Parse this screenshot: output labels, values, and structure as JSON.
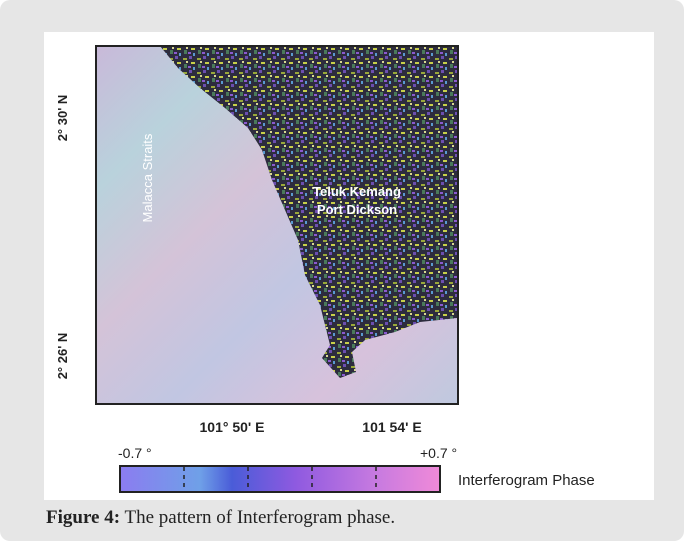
{
  "figure": {
    "lat_labels": [
      "2° 30' N",
      "2° 26' N"
    ],
    "lon_labels": [
      "101° 50' E",
      "101 54' E"
    ],
    "map_labels": {
      "sea": "Malacca Straits",
      "place_1": "Teluk Kemang",
      "place_2": "Port Dickson"
    },
    "colorbar": {
      "min_label": "-0.7 °",
      "max_label": "+0.7 °",
      "title": "Interferogram Phase"
    },
    "caption": {
      "label": "Figure 4:",
      "text": "The pattern of Interferogram phase."
    }
  }
}
